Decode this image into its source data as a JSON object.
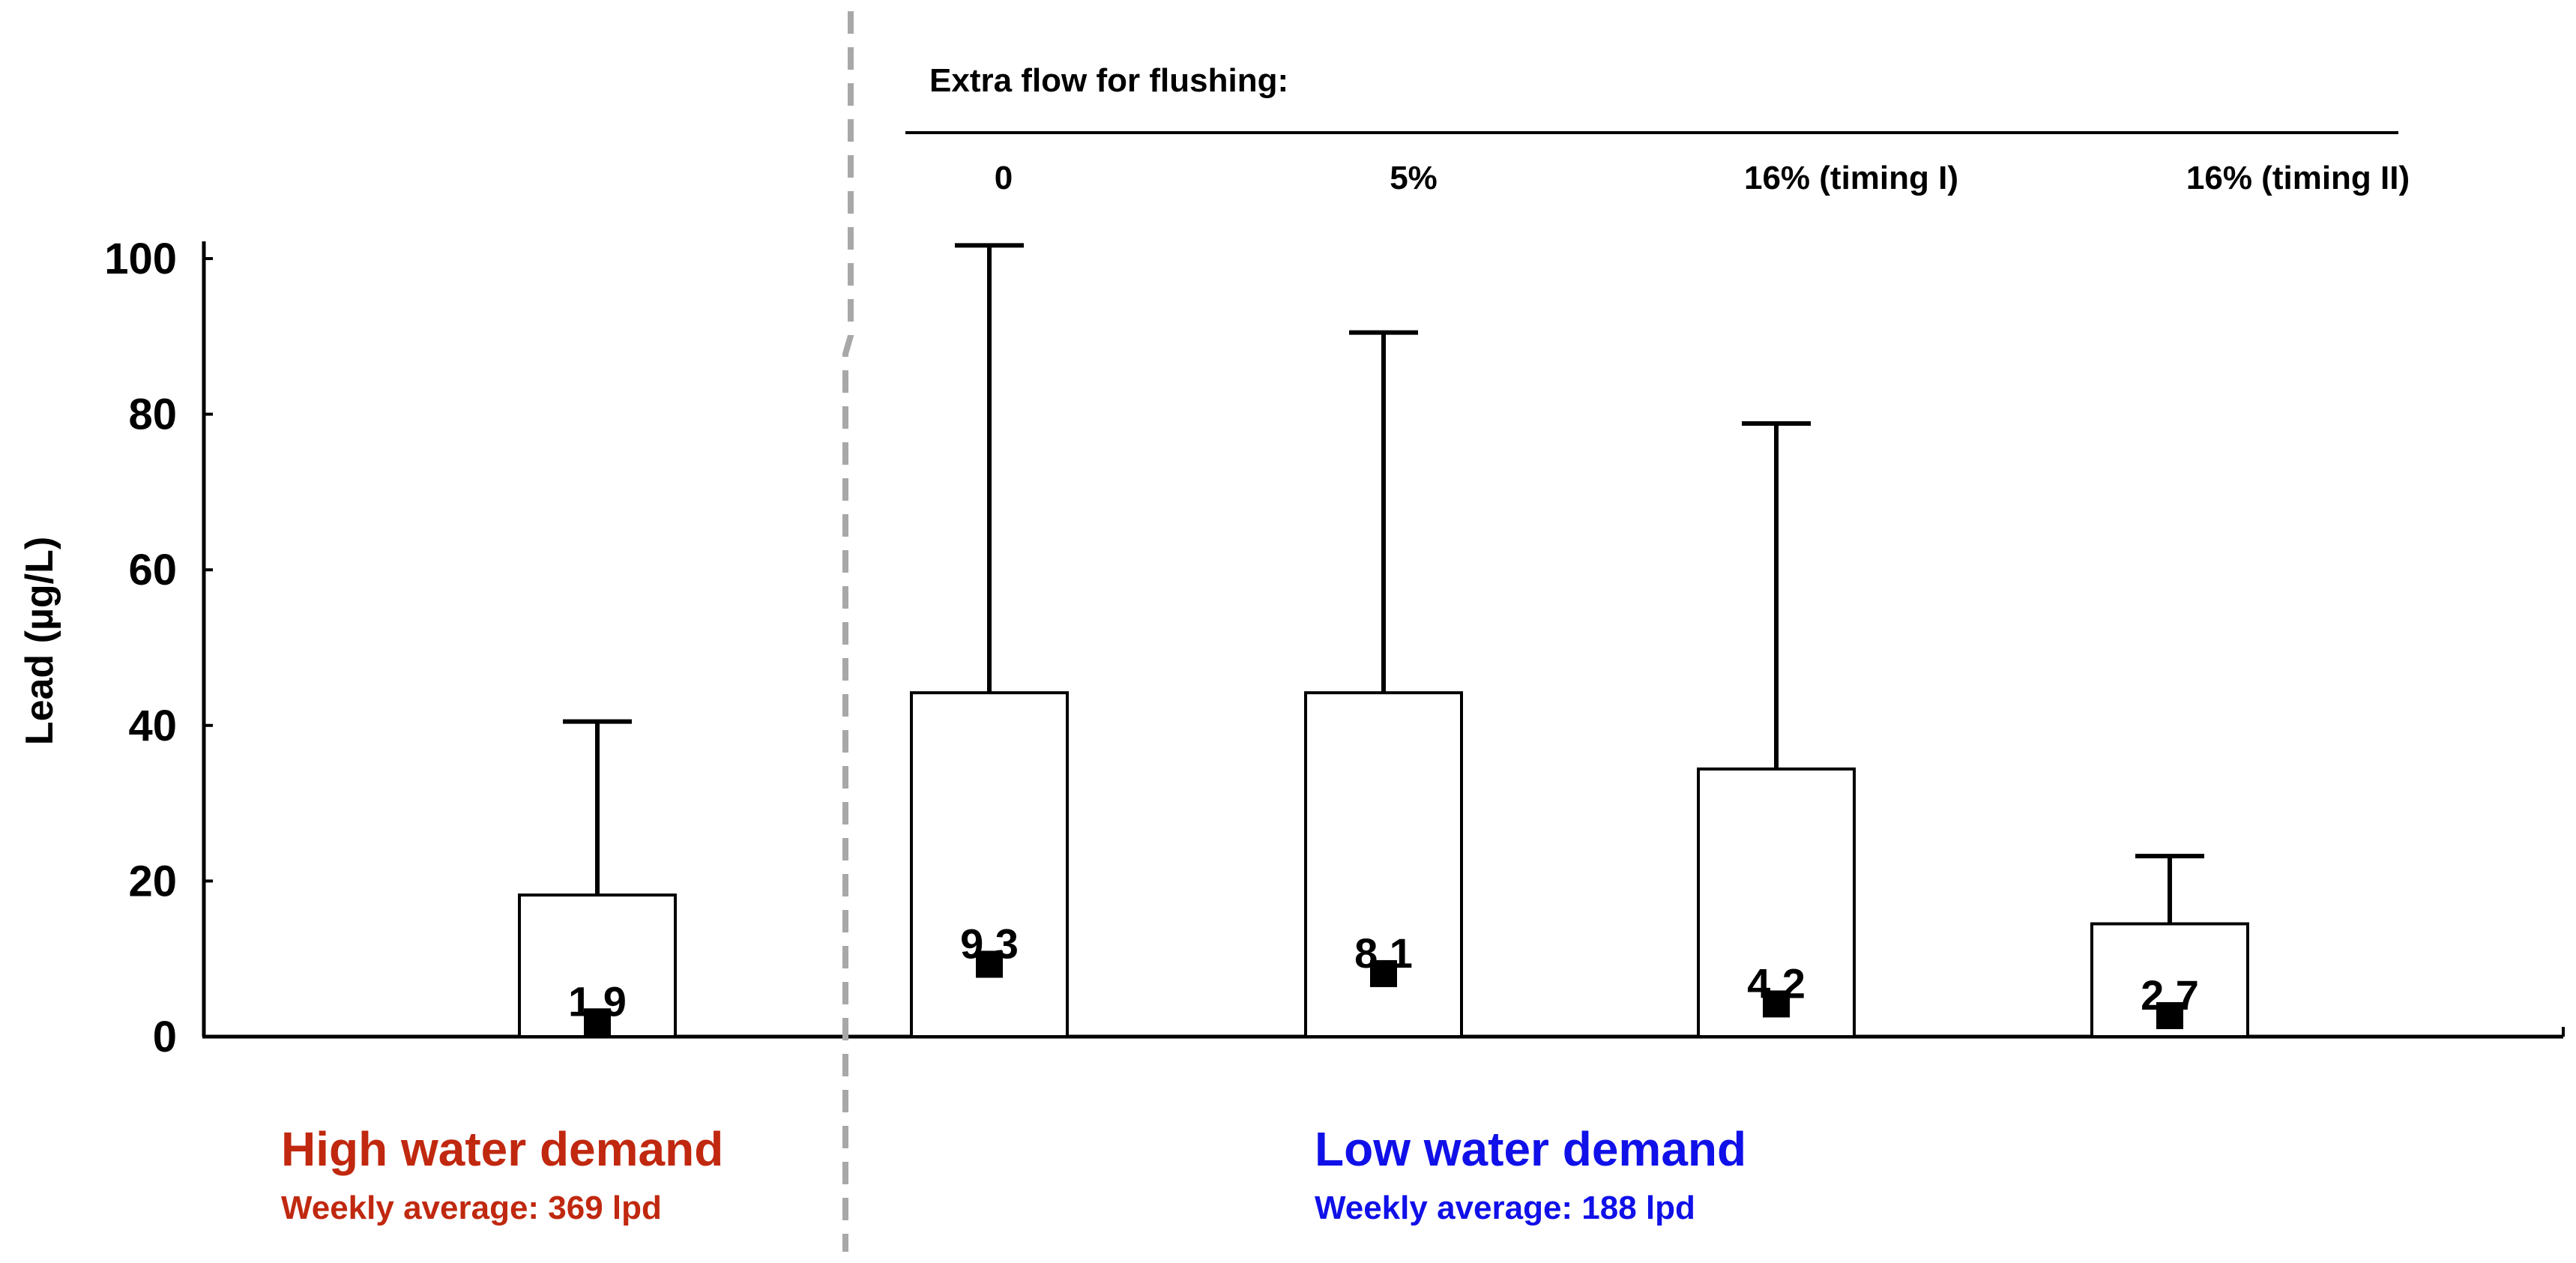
{
  "chart_data": {
    "type": "box",
    "ylabel": "Lead (µg/L)",
    "ylim": [
      0,
      100
    ],
    "yticks": [
      0,
      20,
      40,
      60,
      80,
      100
    ],
    "header": "Extra flow for flushing:",
    "groups": [
      {
        "id": "high",
        "title": "High water demand",
        "subtitle": "Weekly average: 369 lpd",
        "color": "#c0280f"
      },
      {
        "id": "low",
        "title": "Low water demand",
        "subtitle": "Weekly average: 188 lpd",
        "color": "#1010e8"
      }
    ],
    "series": [
      {
        "label": "",
        "group": "high",
        "q1": 0,
        "q3": 18.2,
        "whisker_high": 40.5,
        "median": 1.9,
        "median_label": "1.9"
      },
      {
        "label": "0",
        "group": "low",
        "q1": 0,
        "q3": 44.2,
        "whisker_high": 101.7,
        "median": 9.3,
        "median_label": "9.3"
      },
      {
        "label": "5%",
        "group": "low",
        "q1": 0,
        "q3": 44.2,
        "whisker_high": 90.5,
        "median": 8.1,
        "median_label": "8.1"
      },
      {
        "label": "16% (timing I)",
        "group": "low",
        "q1": 0,
        "q3": 34.4,
        "whisker_high": 78.8,
        "median": 4.2,
        "median_label": "4.2"
      },
      {
        "label": "16% (timing II)",
        "group": "low",
        "q1": 0,
        "q3": 14.5,
        "whisker_high": 23.2,
        "median": 2.7,
        "median_label": "2.7"
      }
    ]
  }
}
